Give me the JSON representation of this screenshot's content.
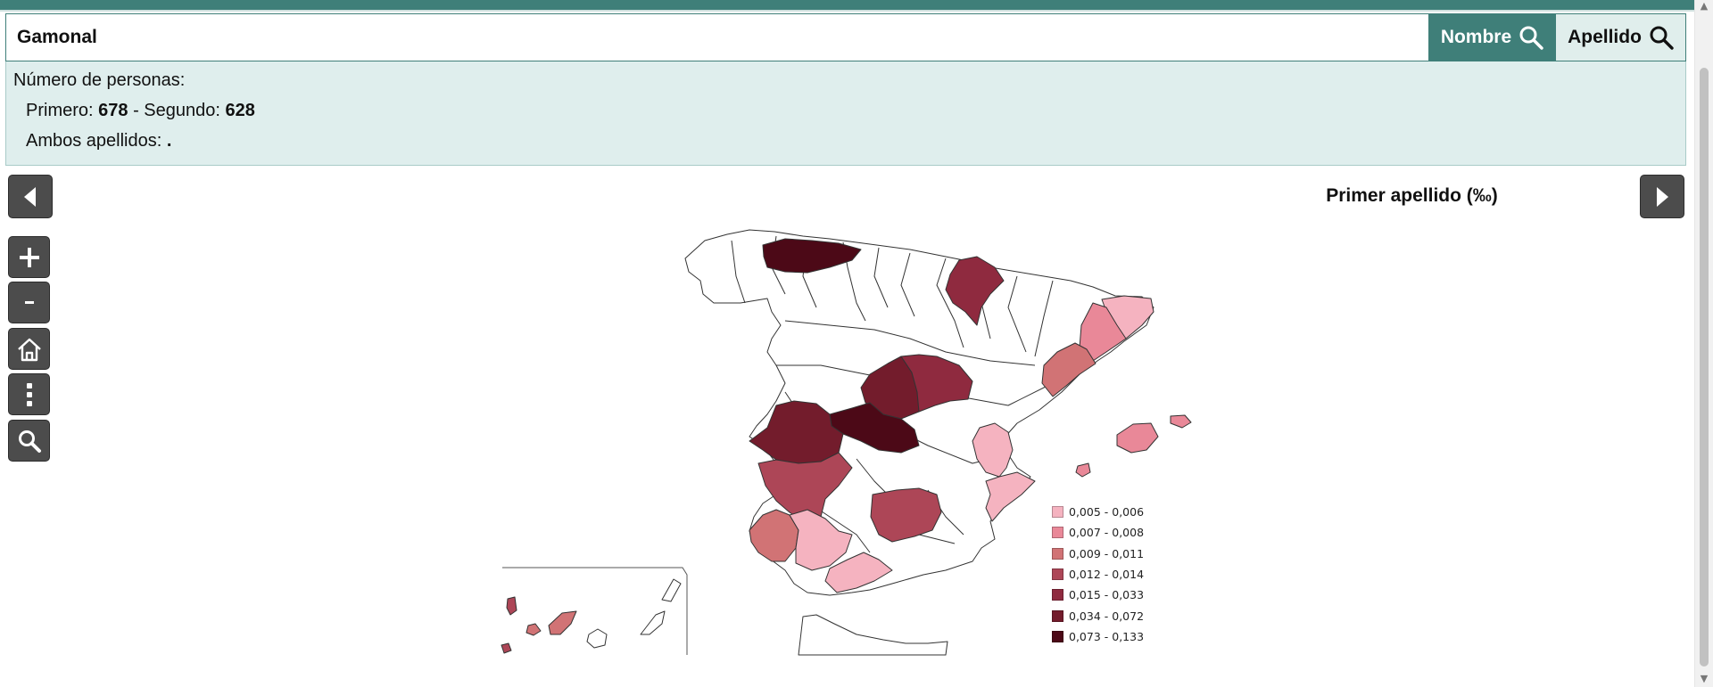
{
  "search": {
    "value": "Gamonal",
    "nombre_label": "Nombre",
    "apellido_label": "Apellido"
  },
  "info": {
    "heading": "Número de personas:",
    "primero_label": "Primero:",
    "primero_value": "678",
    "separator": " - ",
    "segundo_label": "Segundo:",
    "segundo_value": "628",
    "ambos_label": "Ambos apellidos:",
    "ambos_value": "."
  },
  "map": {
    "title": "Primer apellido (‰)",
    "legend": [
      {
        "label": "0,005 - 0,006",
        "color": "#f5b3c0"
      },
      {
        "label": "0,007 - 0,008",
        "color": "#e98898"
      },
      {
        "label": "0,009 - 0,011",
        "color": "#d17375"
      },
      {
        "label": "0,012 - 0,014",
        "color": "#ad4657"
      },
      {
        "label": "0,015 - 0,033",
        "color": "#8f2a3f"
      },
      {
        "label": "0,034 - 0,072",
        "color": "#731c2c"
      },
      {
        "label": "0,073 - 0,133",
        "color": "#4c0917"
      }
    ]
  },
  "controls": [
    "zoom-in",
    "zoom-out",
    "home",
    "more",
    "search"
  ],
  "colors": {
    "accent": "#3f7f79",
    "panel": "#dfeeed",
    "button": "#4c4c4c"
  }
}
